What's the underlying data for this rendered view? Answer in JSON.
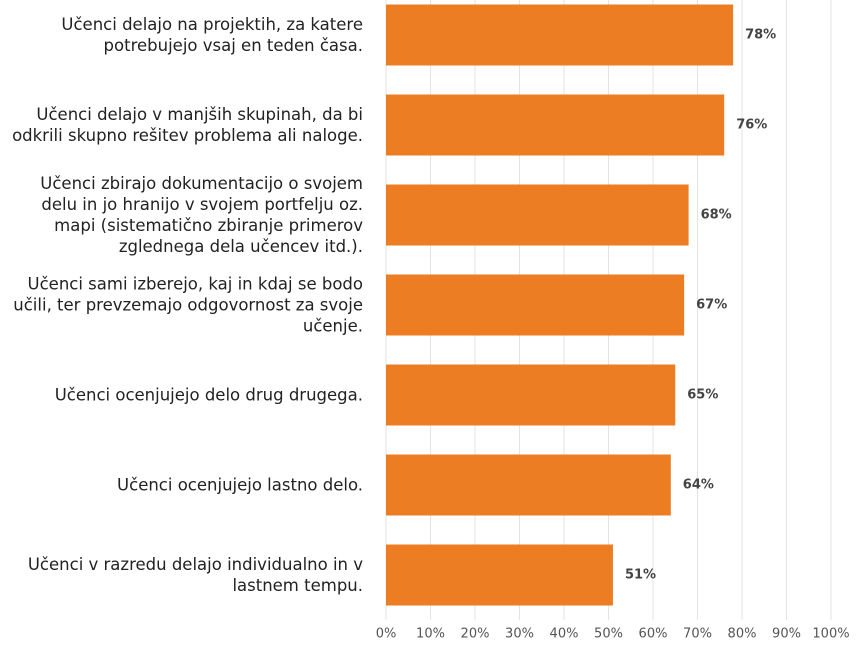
{
  "chart_data": {
    "type": "bar",
    "orientation": "horizontal",
    "categories": [
      "Učenci delajo na projektih, za katere potrebujejo vsaj en teden časa.",
      "Učenci delajo v manjših skupinah, da bi odkrili skupno rešitev problema ali naloge.",
      "Učenci zbirajo dokumentacijo o svojem delu in jo hranijo v svojem portfelju oz. mapi (sistematično zbiranje primerov zglednega dela učencev itd.).",
      "Učenci sami izberejo, kaj in kdaj se bodo učili, ter prevzemajo odgovornost za svoje učenje.",
      "Učenci ocenjujejo delo drug drugega.",
      "Učenci ocenjujejo lastno delo.",
      "Učenci v razredu delajo individualno in v lastnem tempu."
    ],
    "values": [
      78,
      76,
      68,
      67,
      65,
      64,
      51
    ],
    "value_labels": [
      "78%",
      "76%",
      "68%",
      "67%",
      "65%",
      "64%",
      "51%"
    ],
    "color": "#ED7D22",
    "xlim": [
      0,
      100
    ],
    "xticks": [
      {
        "value": 0,
        "label": "0%"
      },
      {
        "value": 10,
        "label": "10%"
      },
      {
        "value": 20,
        "label": "20%"
      },
      {
        "value": 30,
        "label": "30%"
      },
      {
        "value": 40,
        "label": "40%"
      },
      {
        "value": 50,
        "label": "50%"
      },
      {
        "value": 60,
        "label": "60%"
      },
      {
        "value": 70,
        "label": "70%"
      },
      {
        "value": 80,
        "label": "80%"
      },
      {
        "value": 90,
        "label": "90%"
      },
      {
        "value": 100,
        "label": "100%"
      }
    ],
    "grid": true
  }
}
